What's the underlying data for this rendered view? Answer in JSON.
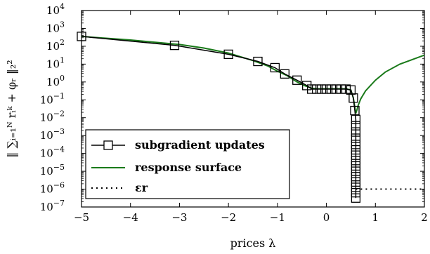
{
  "chart_data": {
    "type": "line",
    "xlabel": "prices λ",
    "ylabel": "‖ ∑ᵢ₌₁ᴺ rᵢᵏ + φᵣ ‖₂²",
    "xlim": [
      -5,
      2
    ],
    "ylim_log10": [
      -7,
      4
    ],
    "y_scale": "log",
    "grid": false,
    "legend_placement": "lower-left",
    "x_ticks": [
      -5,
      -4,
      -3,
      -2,
      -1,
      0,
      1,
      2
    ],
    "x_tick_labels": [
      "−5",
      "−4",
      "−3",
      "−2",
      "−1",
      "0",
      "1",
      "2"
    ],
    "y_ticks_log10": [
      4,
      3,
      2,
      1,
      0,
      -1,
      -2,
      -3,
      -4,
      -5,
      -6,
      -7
    ],
    "y_tick_labels": [
      "10^4",
      "10^3",
      "10^2",
      "10^1",
      "10^0",
      "10^-1",
      "10^-2",
      "10^-3",
      "10^-4",
      "10^-5",
      "10^-6",
      "10^-7"
    ],
    "series": [
      {
        "name": "subgradient updates",
        "color": "#000000",
        "marker": "square",
        "x": [
          -5,
          -3.1,
          -2.0,
          -1.4,
          -1.05,
          -0.85,
          -0.6,
          -0.4,
          -0.3,
          -0.2,
          -0.1,
          0.0,
          0.1,
          0.2,
          0.3,
          0.4,
          0.5,
          0.55,
          0.58,
          0.6,
          0.6,
          0.6,
          0.6,
          0.6,
          0.6,
          0.6,
          0.6,
          0.6,
          0.6,
          0.6,
          0.6,
          0.6,
          0.6,
          0.6
        ],
        "y_log10": [
          2.55,
          2.05,
          1.55,
          1.15,
          0.8,
          0.45,
          0.1,
          -0.2,
          -0.4,
          -0.4,
          -0.4,
          -0.4,
          -0.4,
          -0.4,
          -0.4,
          -0.4,
          -0.45,
          -0.9,
          -1.6,
          -2.1,
          -2.45,
          -2.8,
          -3.15,
          -3.5,
          -3.8,
          -4.1,
          -4.4,
          -4.7,
          -5.0,
          -5.3,
          -5.6,
          -5.9,
          -6.2,
          -6.5
        ]
      },
      {
        "name": "response surface",
        "color": "#1a7a1a",
        "x": [
          -5,
          -4,
          -3,
          -2.5,
          -2,
          -1.5,
          -1.2,
          -1.0,
          -0.8,
          -0.6,
          -0.45,
          -0.3,
          -0.2,
          0,
          0.2,
          0.4,
          0.5,
          0.55,
          0.6,
          0.62,
          0.65,
          0.7,
          0.8,
          1.0,
          1.2,
          1.5,
          1.8,
          2.0
        ],
        "y_log10": [
          2.55,
          2.35,
          2.1,
          1.9,
          1.62,
          1.2,
          0.9,
          0.6,
          0.35,
          0.0,
          -0.2,
          -0.35,
          -0.38,
          -0.38,
          -0.38,
          -0.38,
          -0.45,
          -0.9,
          -1.75,
          -1.6,
          -1.3,
          -0.95,
          -0.5,
          0.1,
          0.55,
          1.0,
          1.3,
          1.5
        ]
      },
      {
        "name": "εr",
        "color": "#000000",
        "style": "dotted",
        "x": [
          0.6,
          2.0
        ],
        "y_log10": [
          -6,
          -6
        ]
      }
    ],
    "legend": [
      {
        "label": "subgradient updates",
        "kind": "line-square"
      },
      {
        "label": "response surface",
        "kind": "line"
      },
      {
        "label": "εr",
        "kind": "dotted"
      }
    ]
  }
}
